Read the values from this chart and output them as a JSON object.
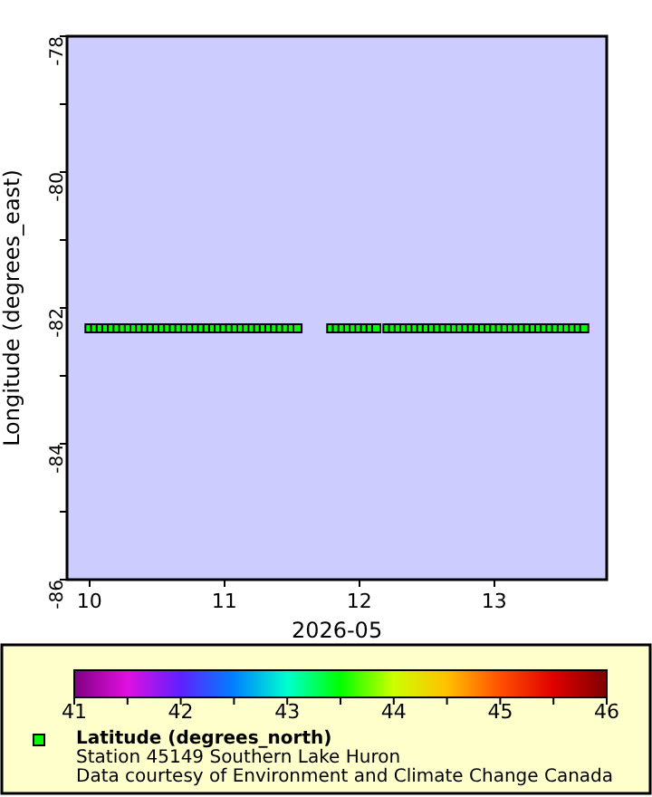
{
  "chart_data": {
    "type": "scatter",
    "title": "Station 45149 Southern Lake Huron",
    "annotations": [
      "Data courtesy of Environment and Climate Change Canada"
    ],
    "xlabel": "2026-05",
    "ylabel": "Longitude (degrees_east)",
    "clabel": "Latitude (degrees_north)",
    "marker": "square",
    "xlim": [
      "2026-05-09T20:00",
      "2026-05-13T20:00"
    ],
    "xticks": [
      {
        "value": "2026-05-10",
        "label": "10"
      },
      {
        "value": "2026-05-11",
        "label": "11"
      },
      {
        "value": "2026-05-12",
        "label": "12"
      },
      {
        "value": "2026-05-13",
        "label": "13"
      }
    ],
    "ylim": [
      -86,
      -78
    ],
    "yticks": [
      -86,
      {
        "value": -85,
        "label": null
      },
      -84,
      {
        "value": -83,
        "label": null
      },
      -82,
      {
        "value": -81,
        "label": null
      },
      -80,
      {
        "value": -79,
        "label": null
      },
      -78
    ],
    "clim": [
      41,
      46
    ],
    "cticks": [
      41,
      {
        "value": 41.5,
        "label": null
      },
      42,
      {
        "value": 42.5,
        "label": null
      },
      43,
      {
        "value": 43.5,
        "label": null
      },
      44,
      {
        "value": 44.5,
        "label": null
      },
      45,
      {
        "value": 45.5,
        "label": null
      },
      46
    ],
    "series": [
      {
        "x": [
          "2026-05-10T00:00",
          "2026-05-10T01:00",
          "2026-05-10T02:00",
          "2026-05-10T03:00",
          "2026-05-10T04:00",
          "2026-05-10T05:00",
          "2026-05-10T06:00",
          "2026-05-10T07:00",
          "2026-05-10T08:00",
          "2026-05-10T09:00",
          "2026-05-10T10:00",
          "2026-05-10T11:00",
          "2026-05-10T12:00",
          "2026-05-10T13:00",
          "2026-05-10T14:00",
          "2026-05-10T15:00",
          "2026-05-10T16:00",
          "2026-05-10T17:00",
          "2026-05-10T18:00",
          "2026-05-10T19:00",
          "2026-05-10T20:00",
          "2026-05-10T21:00",
          "2026-05-10T22:00",
          "2026-05-10T23:00",
          "2026-05-11T00:00",
          "2026-05-11T01:00",
          "2026-05-11T02:00",
          "2026-05-11T03:00",
          "2026-05-11T04:00",
          "2026-05-11T05:00",
          "2026-05-11T06:00",
          "2026-05-11T07:00",
          "2026-05-11T08:00",
          "2026-05-11T09:00",
          "2026-05-11T10:00",
          "2026-05-11T11:00",
          "2026-05-11T12:00",
          "2026-05-11T13:00",
          "2026-05-11T19:00",
          "2026-05-11T20:00",
          "2026-05-11T21:00",
          "2026-05-11T22:00",
          "2026-05-11T23:00",
          "2026-05-12T00:00",
          "2026-05-12T01:00",
          "2026-05-12T02:00",
          "2026-05-12T03:00",
          "2026-05-12T05:00",
          "2026-05-12T06:00",
          "2026-05-12T07:00",
          "2026-05-12T08:00",
          "2026-05-12T09:00",
          "2026-05-12T10:00",
          "2026-05-12T11:00",
          "2026-05-12T12:00",
          "2026-05-12T13:00",
          "2026-05-12T14:00",
          "2026-05-12T15:00",
          "2026-05-12T16:00",
          "2026-05-12T17:00",
          "2026-05-12T18:00",
          "2026-05-12T19:00",
          "2026-05-12T20:00",
          "2026-05-12T21:00",
          "2026-05-12T22:00",
          "2026-05-12T23:00",
          "2026-05-13T00:00",
          "2026-05-13T01:00",
          "2026-05-13T02:00",
          "2026-05-13T03:00",
          "2026-05-13T04:00",
          "2026-05-13T05:00",
          "2026-05-13T06:00",
          "2026-05-13T07:00",
          "2026-05-13T08:00",
          "2026-05-13T09:00",
          "2026-05-13T10:00",
          "2026-05-13T11:00",
          "2026-05-13T12:00",
          "2026-05-13T13:00",
          "2026-05-13T14:00",
          "2026-05-13T15:00",
          "2026-05-13T16:00"
        ],
        "values": [
          -82.3,
          -82.3,
          -82.3,
          -82.3,
          -82.3,
          -82.3,
          -82.3,
          -82.3,
          -82.3,
          -82.3,
          -82.3,
          -82.3,
          -82.3,
          -82.3,
          -82.3,
          -82.3,
          -82.3,
          -82.3,
          -82.3,
          -82.3,
          -82.3,
          -82.3,
          -82.3,
          -82.3,
          -82.3,
          -82.3,
          -82.3,
          -82.3,
          -82.3,
          -82.3,
          -82.3,
          -82.3,
          -82.3,
          -82.3,
          -82.3,
          -82.3,
          -82.3,
          -82.3,
          -82.3,
          -82.3,
          -82.3,
          -82.3,
          -82.3,
          -82.3,
          -82.3,
          -82.3,
          -82.3,
          -82.3,
          -82.3,
          -82.3,
          -82.3,
          -82.3,
          -82.3,
          -82.3,
          -82.3,
          -82.3,
          -82.3,
          -82.3,
          -82.3,
          -82.3,
          -82.3,
          -82.3,
          -82.3,
          -82.3,
          -82.3,
          -82.3,
          -82.3,
          -82.3,
          -82.3,
          -82.3,
          -82.3,
          -82.3,
          -82.3,
          -82.3,
          -82.3,
          -82.3,
          -82.3,
          -82.3,
          -82.3,
          -82.3,
          -82.3,
          -82.3,
          -82.3
        ],
        "cvalues": [
          43.5,
          43.5,
          43.5,
          43.5,
          43.5,
          43.5,
          43.5,
          43.5,
          43.5,
          43.5,
          43.5,
          43.5,
          43.5,
          43.5,
          43.5,
          43.5,
          43.5,
          43.5,
          43.5,
          43.5,
          43.5,
          43.5,
          43.5,
          43.5,
          43.5,
          43.5,
          43.5,
          43.5,
          43.5,
          43.5,
          43.5,
          43.5,
          43.5,
          43.5,
          43.5,
          43.5,
          43.5,
          43.5,
          43.5,
          43.5,
          43.5,
          43.5,
          43.5,
          43.5,
          43.5,
          43.5,
          43.5,
          43.5,
          43.5,
          43.5,
          43.5,
          43.5,
          43.5,
          43.5,
          43.5,
          43.5,
          43.5,
          43.5,
          43.5,
          43.5,
          43.5,
          43.5,
          43.5,
          43.5,
          43.5,
          43.5,
          43.5,
          43.5,
          43.5,
          43.5,
          43.5,
          43.5,
          43.5,
          43.5,
          43.5,
          43.5,
          43.5,
          43.5,
          43.5,
          43.5,
          43.5,
          43.5,
          43.5
        ]
      }
    ]
  }
}
